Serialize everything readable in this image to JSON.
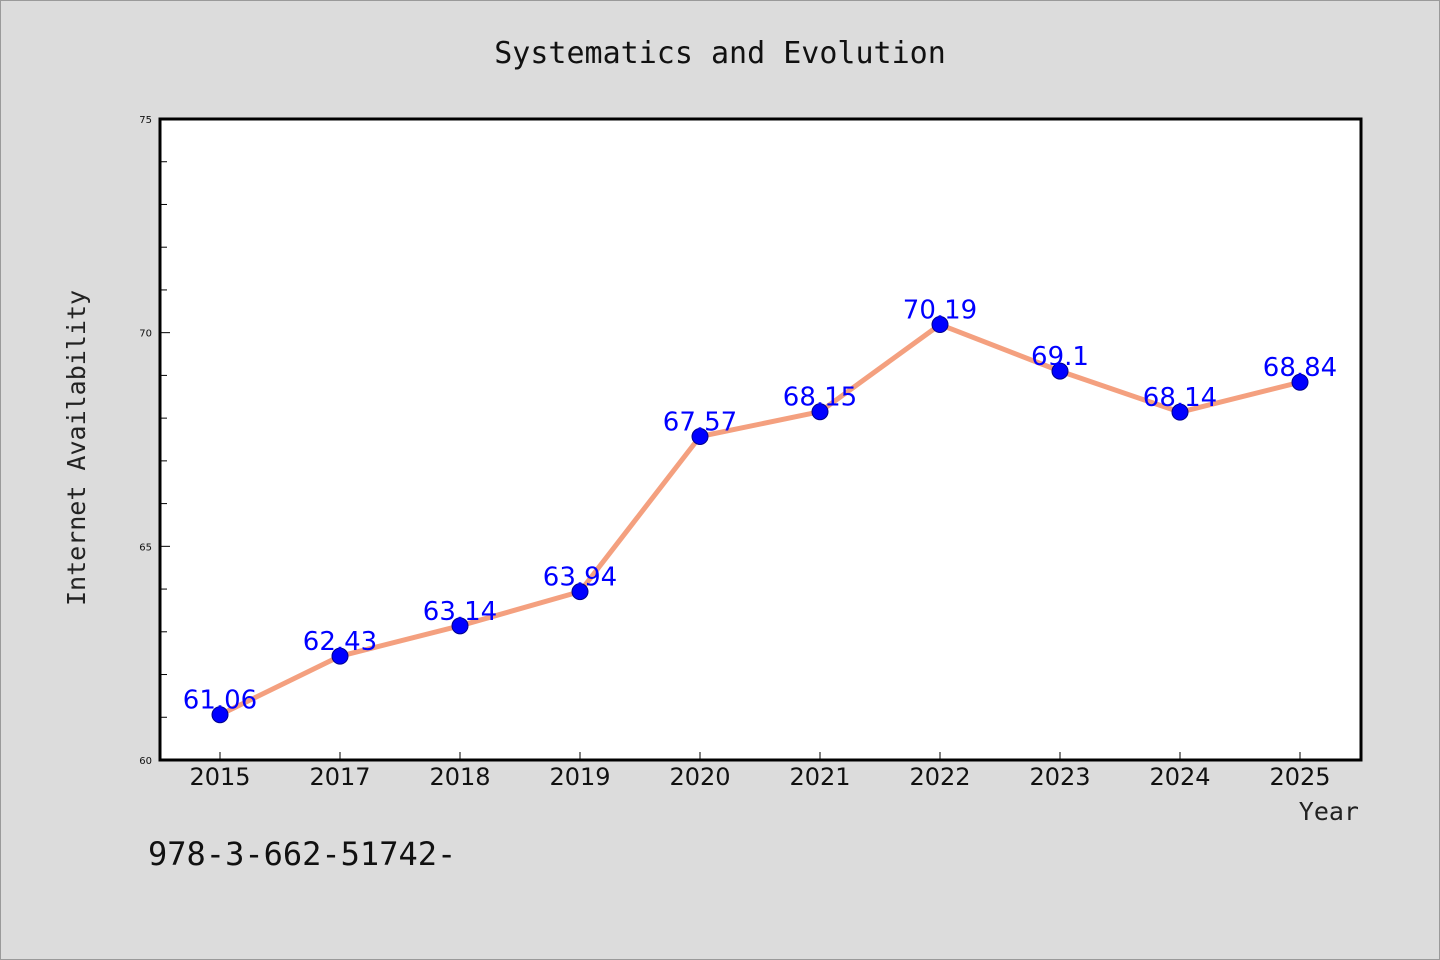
{
  "chart_data": {
    "type": "line",
    "title": "Systematics and Evolution",
    "xlabel": "Year",
    "ylabel": "Internet Availability",
    "categories": [
      "2015",
      "2017",
      "2018",
      "2019",
      "2020",
      "2021",
      "2022",
      "2023",
      "2024",
      "2025"
    ],
    "series": [
      {
        "values": [
          61.06,
          62.43,
          63.14,
          63.94,
          67.57,
          68.15,
          70.19,
          69.1,
          68.14,
          68.84
        ]
      }
    ],
    "data_labels": [
      "61.06",
      "62.43",
      "63.14",
      "63.94",
      "67.57",
      "68.15",
      "70.19",
      "69.1",
      "68.14",
      "68.84"
    ],
    "ylim": [
      60,
      75
    ],
    "yticks": [
      "60",
      "65",
      "70",
      "75"
    ],
    "grid": false,
    "colors": {
      "line": "#f4a07f",
      "marker": "#0000ff",
      "data_label": "#0000ff",
      "background": "#dcdcdc",
      "plot_bg": "#ffffff"
    }
  },
  "footer": {
    "text": "978-3-662-51742-"
  }
}
